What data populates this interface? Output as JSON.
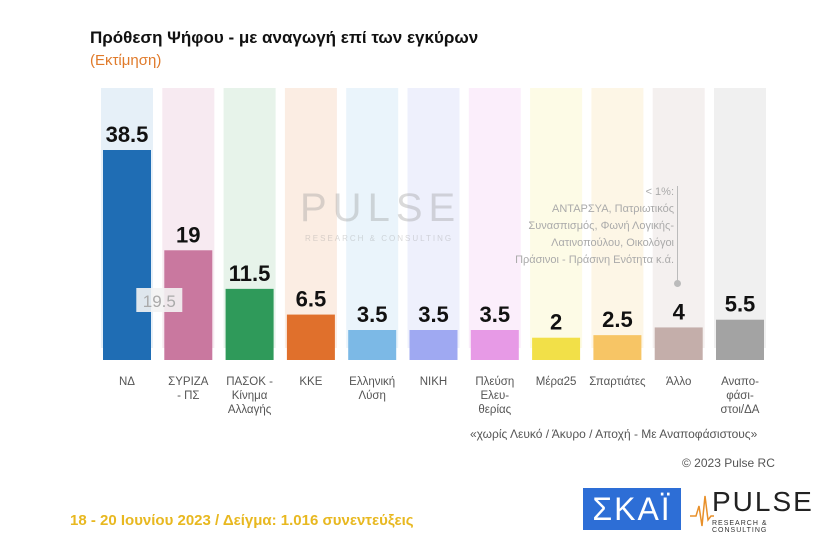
{
  "title": "Πρόθεση Ψήφου - με αναγωγή επί των εγκύρων",
  "subtitle": "(Εκτίμηση)",
  "chart_data": {
    "type": "bar",
    "title": "Πρόθεση Ψήφου - με αναγωγή επί των εγκύρων",
    "subtitle": "(Εκτίμηση)",
    "categories": [
      "ΝΔ",
      "ΣΥΡΙΖΑ - ΠΣ",
      "ΠΑΣΟΚ - Κίνημα Αλλαγής",
      "ΚΚΕ",
      "Ελληνική Λύση",
      "ΝΙΚΗ",
      "Πλεύση Ελευ-θερίας",
      "Μέρα25",
      "Σπαρτιάτες",
      "Άλλο",
      "Αναπο-φάσι-στοι/ΔΑ"
    ],
    "labels": [
      [
        "ΝΔ"
      ],
      [
        "ΣΥΡΙΖΑ",
        "- ΠΣ"
      ],
      [
        "ΠΑΣΟΚ -",
        "Κίνημα",
        "Αλλαγής"
      ],
      [
        "ΚΚΕ"
      ],
      [
        "Ελληνική",
        "Λύση"
      ],
      [
        "ΝΙΚΗ"
      ],
      [
        "Πλεύση",
        "Ελευ-",
        "θερίας"
      ],
      [
        "Μέρα25"
      ],
      [
        "Σπαρτιάτες"
      ],
      [
        "Άλλο"
      ],
      [
        "Αναπο-",
        "φάσι-",
        "στοι/ΔΑ"
      ]
    ],
    "values": [
      38.5,
      19,
      11.5,
      6.5,
      3.5,
      3.5,
      3.5,
      2,
      2.5,
      4,
      5.5
    ],
    "value_labels": [
      "38.5",
      "19",
      "11.5",
      "6.5",
      "3.5",
      "3.5",
      "3.5",
      "2",
      "2.5",
      "4",
      "5.5"
    ],
    "colors": [
      "#1f6db4",
      "#c9789f",
      "#2f9a5a",
      "#e0702c",
      "#7cb9e6",
      "#9fa9f2",
      "#e79ae6",
      "#f2e048",
      "#f7c565",
      "#c4aeaa",
      "#a3a3a3"
    ],
    "bg_colors": [
      "#e6f0f8",
      "#f7eaf1",
      "#e7f3ea",
      "#fbede3",
      "#eaf4fb",
      "#eef0fc",
      "#fbeefb",
      "#fdfbe6",
      "#fdf6e6",
      "#f4f0ef",
      "#f0f0f0"
    ],
    "previous_annotation": {
      "category": "ΣΥΡΙΖΑ - ΠΣ",
      "label": "19.5"
    },
    "ylim": [
      0,
      40
    ],
    "grid": false
  },
  "note": {
    "lines": [
      "< 1%:",
      "ΑΝΤΑΡΣΥΑ, Πατριωτικός",
      "Συνασπισμός, Φωνή Λογικής-",
      "Λατινοπούλου, Οικολόγοι",
      "Πράσινοι - Πράσινη Ενότητα   κ.ά."
    ]
  },
  "footnote": "«χωρίς Λευκό / Άκυρο / Αποχή - Με Αναποφάσιστους»",
  "copyright": "© 2023 Pulse RC",
  "date_sample": "18 - 20  Ιουνίου  2023  /  Δείγμα:  1.016 συνεντεύξεις",
  "logos": {
    "skai": "ΣΚΑΪ",
    "pulse": "PULSE",
    "pulse_sub": "RESEARCH & CONSULTING"
  }
}
